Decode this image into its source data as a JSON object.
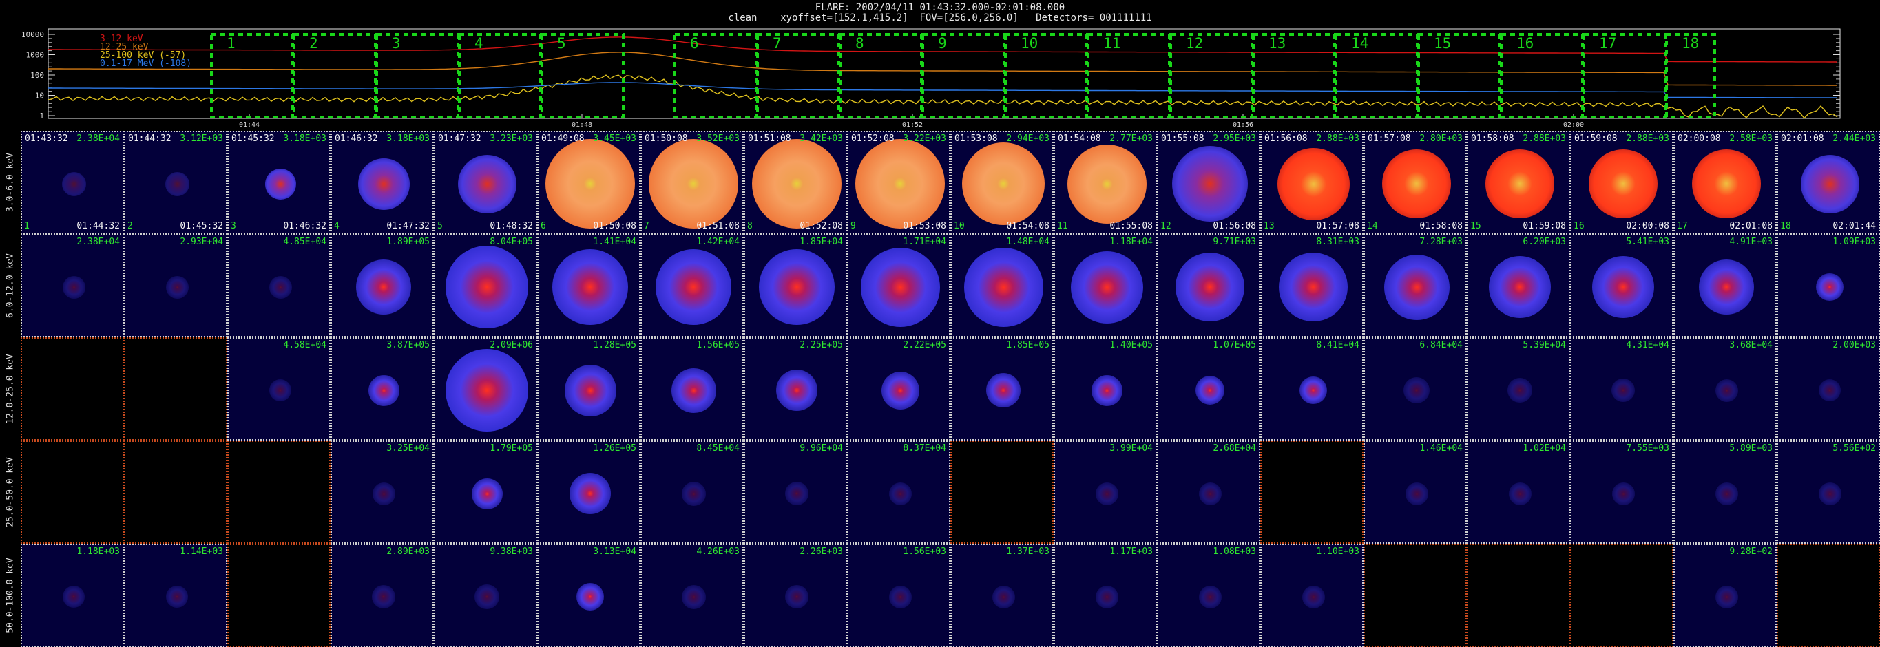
{
  "header": {
    "line1": "FLARE: 2002/04/11 01:43:32.000-02:01:08.000",
    "line2": "clean    xyoffset=[152.1,415.2]  FOV=[256.0,256.0]   Detectors= 001111111"
  },
  "lightcurve": {
    "legend": [
      {
        "label": "3-12 keV",
        "color": "#d21414"
      },
      {
        "label": "12-25 keV",
        "color": "#d27a14"
      },
      {
        "label": "25-100 keV (-57)",
        "color": "#e0c21e"
      },
      {
        "label": "0.1-17 MeV (-108)",
        "color": "#2d78e6"
      }
    ],
    "y_ticks": [
      "10000",
      "1000",
      "100",
      "10",
      "1"
    ],
    "time_ticks": [
      "01:44",
      "01:48",
      "01:52",
      "01:56",
      "02:00"
    ],
    "interval_labels": [
      "1",
      "2",
      "3",
      "4",
      "5",
      "6",
      "7",
      "8",
      "9",
      "10",
      "11",
      "12",
      "13",
      "14",
      "15",
      "16",
      "17",
      "18"
    ],
    "interval_color": "#19d619"
  },
  "rows": [
    {
      "label": "3.0-6.0 keV",
      "palette": "red"
    },
    {
      "label": "6.0-12.0 keV",
      "palette": "blue"
    },
    {
      "label": "12.0-25.0 keV",
      "palette": "blue"
    },
    {
      "label": "25.0-50.0 keV",
      "palette": "blue"
    },
    {
      "label": "50.0-100.0 keV",
      "palette": "blue"
    }
  ],
  "start_times": [
    "01:43:32",
    "01:44:32",
    "01:45:32",
    "01:46:32",
    "01:47:32",
    "01:49:08",
    "01:50:08",
    "01:51:08",
    "01:52:08",
    "01:53:08",
    "01:54:08",
    "01:55:08",
    "01:56:08",
    "01:57:08",
    "01:58:08",
    "01:59:08",
    "02:00:08",
    "02:01:08"
  ],
  "end_times": [
    "01:44:32",
    "01:45:32",
    "01:46:32",
    "01:47:32",
    "01:48:32",
    "01:50:08",
    "01:51:08",
    "01:52:08",
    "01:53:08",
    "01:54:08",
    "01:55:08",
    "01:56:08",
    "01:57:08",
    "01:58:08",
    "01:59:08",
    "02:00:08",
    "02:01:08",
    "02:01:44"
  ],
  "cells": [
    [
      {
        "peak": "2.38E+04",
        "level": 0.05
      },
      {
        "peak": "3.12E+03",
        "level": 0.05
      },
      {
        "peak": "3.18E+03",
        "level": 0.15
      },
      {
        "peak": "3.18E+03",
        "level": 0.45
      },
      {
        "peak": "3.23E+03",
        "level": 0.55
      },
      {
        "peak": "3.45E+03",
        "level": 1.0
      },
      {
        "peak": "3.52E+03",
        "level": 1.0
      },
      {
        "peak": "3.42E+03",
        "level": 1.0
      },
      {
        "peak": "3.22E+03",
        "level": 1.0
      },
      {
        "peak": "2.94E+03",
        "level": 0.9
      },
      {
        "peak": "2.77E+03",
        "level": 0.85
      },
      {
        "peak": "2.95E+03",
        "level": 0.8
      },
      {
        "peak": "2.88E+03",
        "level": 0.75
      },
      {
        "peak": "2.80E+03",
        "level": 0.7
      },
      {
        "peak": "2.88E+03",
        "level": 0.7
      },
      {
        "peak": "2.88E+03",
        "level": 0.7
      },
      {
        "peak": "2.58E+03",
        "level": 0.7
      },
      {
        "peak": "2.44E+03",
        "level": 0.55
      }
    ],
    [
      {
        "peak": "2.38E+04",
        "level": 0.03
      },
      {
        "peak": "2.93E+04",
        "level": 0.03
      },
      {
        "peak": "4.85E+04",
        "level": 0.03
      },
      {
        "peak": "1.89E+05",
        "level": 0.5
      },
      {
        "peak": "8.04E+05",
        "level": 0.9
      },
      {
        "peak": "1.41E+04",
        "level": 0.8
      },
      {
        "peak": "1.42E+04",
        "level": 0.8
      },
      {
        "peak": "1.85E+04",
        "level": 0.8
      },
      {
        "peak": "1.71E+04",
        "level": 0.85
      },
      {
        "peak": "1.48E+04",
        "level": 0.85
      },
      {
        "peak": "1.18E+04",
        "level": 0.75
      },
      {
        "peak": "9.71E+03",
        "level": 0.7
      },
      {
        "peak": "8.31E+03",
        "level": 0.7
      },
      {
        "peak": "7.28E+03",
        "level": 0.65
      },
      {
        "peak": "6.20E+03",
        "level": 0.6
      },
      {
        "peak": "5.41E+03",
        "level": 0.6
      },
      {
        "peak": "4.91E+03",
        "level": 0.5
      },
      {
        "peak": "1.09E+03",
        "level": 0.1
      }
    ],
    [
      {
        "peak": "",
        "level": -1
      },
      {
        "peak": "",
        "level": -1
      },
      {
        "peak": "4.58E+04",
        "level": 0.02
      },
      {
        "peak": "3.87E+05",
        "level": 0.15
      },
      {
        "peak": "2.09E+06",
        "level": 0.9
      },
      {
        "peak": "1.28E+05",
        "level": 0.45
      },
      {
        "peak": "1.56E+05",
        "level": 0.35
      },
      {
        "peak": "2.25E+05",
        "level": 0.3
      },
      {
        "peak": "2.22E+05",
        "level": 0.25
      },
      {
        "peak": "1.85E+05",
        "level": 0.2
      },
      {
        "peak": "1.40E+05",
        "level": 0.15
      },
      {
        "peak": "1.07E+05",
        "level": 0.12
      },
      {
        "peak": "8.41E+04",
        "level": 0.1
      },
      {
        "peak": "6.84E+04",
        "level": 0.08
      },
      {
        "peak": "5.39E+04",
        "level": 0.06
      },
      {
        "peak": "4.31E+04",
        "level": 0.04
      },
      {
        "peak": "3.68E+04",
        "level": 0.03
      },
      {
        "peak": "2.00E+03",
        "level": 0.02
      }
    ],
    [
      {
        "peak": "",
        "level": -1
      },
      {
        "peak": "",
        "level": -1
      },
      {
        "peak": "",
        "level": -1
      },
      {
        "peak": "3.25E+04",
        "level": 0.03
      },
      {
        "peak": "1.79E+05",
        "level": 0.15
      },
      {
        "peak": "1.26E+05",
        "level": 0.3
      },
      {
        "peak": "8.45E+04",
        "level": 0.05
      },
      {
        "peak": "9.96E+04",
        "level": 0.04
      },
      {
        "peak": "8.37E+04",
        "level": 0.03
      },
      {
        "peak": "",
        "level": -1
      },
      {
        "peak": "3.99E+04",
        "level": 0.03
      },
      {
        "peak": "2.68E+04",
        "level": 0.03
      },
      {
        "peak": "",
        "level": -1
      },
      {
        "peak": "1.46E+04",
        "level": 0.03
      },
      {
        "peak": "1.02E+04",
        "level": 0.03
      },
      {
        "peak": "7.55E+03",
        "level": 0.03
      },
      {
        "peak": "5.89E+03",
        "level": 0.03
      },
      {
        "peak": "5.56E+02",
        "level": 0.03
      }
    ],
    [
      {
        "peak": "1.18E+03",
        "level": 0.02
      },
      {
        "peak": "1.14E+03",
        "level": 0.02
      },
      {
        "peak": "",
        "level": -1
      },
      {
        "peak": "2.89E+03",
        "level": 0.04
      },
      {
        "peak": "9.38E+03",
        "level": 0.06
      },
      {
        "peak": "3.13E+04",
        "level": 0.1
      },
      {
        "peak": "4.26E+03",
        "level": 0.05
      },
      {
        "peak": "2.26E+03",
        "level": 0.04
      },
      {
        "peak": "1.56E+03",
        "level": 0.03
      },
      {
        "peak": "1.37E+03",
        "level": 0.03
      },
      {
        "peak": "1.17E+03",
        "level": 0.03
      },
      {
        "peak": "1.08E+03",
        "level": 0.03
      },
      {
        "peak": "1.10E+03",
        "level": 0.03
      },
      {
        "peak": "",
        "level": -1
      },
      {
        "peak": "",
        "level": -1
      },
      {
        "peak": "",
        "level": -1
      },
      {
        "peak": "9.28E+02",
        "level": 0.03
      },
      {
        "peak": "",
        "level": -1
      }
    ]
  ]
}
